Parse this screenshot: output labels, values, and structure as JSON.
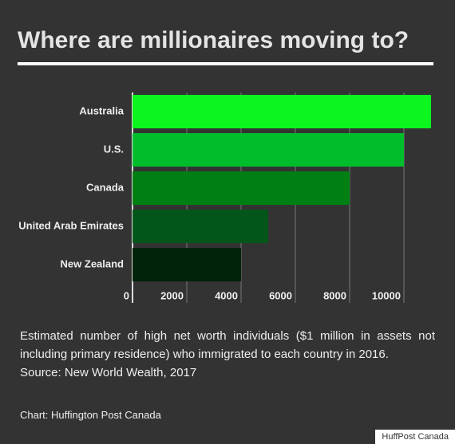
{
  "chart_data": {
    "type": "barh",
    "title": "Where are millionaires moving to?",
    "categories": [
      "Australia",
      "U.S.",
      "Canada",
      "United Arab Emirates",
      "New Zealand"
    ],
    "values": [
      11000,
      10000,
      8000,
      5000,
      4000
    ],
    "colors": [
      "#0cf51f",
      "#00bd2c",
      "#007f12",
      "#03561a",
      "#002309"
    ],
    "xlim": [
      0,
      11100
    ],
    "xticks": [
      0,
      2000,
      4000,
      6000,
      8000,
      10000
    ],
    "grid": true,
    "note": "Estimated number of high net worth individuals ($1 million in assets not including primary residence) who immigrated to each country in 2016.",
    "source": "Source: New World Wealth, 2017",
    "credit": "Chart: Huffington Post Canada",
    "watermark": "HuffPost Canada"
  }
}
